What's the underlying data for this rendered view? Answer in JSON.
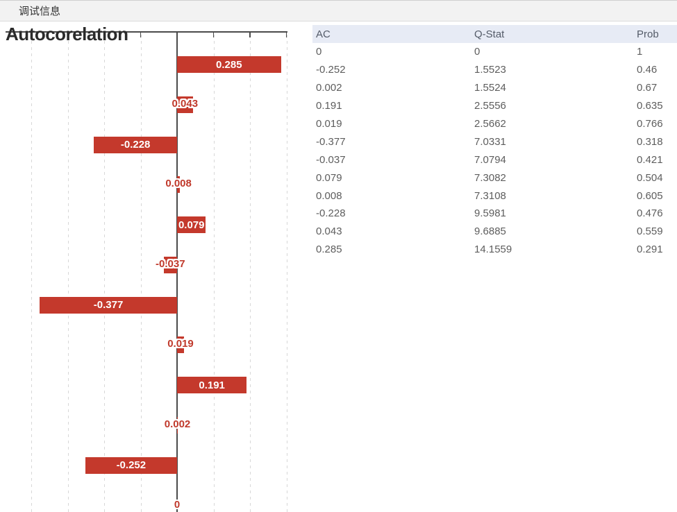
{
  "topbar": {
    "title": "调试信息"
  },
  "chart_data": {
    "type": "bar",
    "orientation": "horizontal",
    "title": "Autocorelation",
    "bar_color": "#c4392c",
    "label_color_outside": "#c0392b",
    "values": [
      0.285,
      0.043,
      -0.228,
      0.008,
      0.079,
      -0.037,
      -0.377,
      0.019,
      0.191,
      0.002,
      -0.252,
      0
    ],
    "labels": [
      "0.285",
      "0.043",
      "-0.228",
      "0.008",
      "0.079",
      "-0.037",
      "-0.377",
      "0.019",
      "0.191",
      "0.002",
      "-0.252",
      "0"
    ],
    "x_gridlines": [
      -0.4,
      -0.3,
      -0.2,
      -0.1,
      0,
      0.1,
      0.2,
      0.3
    ],
    "xlim": [
      -0.47,
      0.31
    ],
    "grid": true,
    "legend": false
  },
  "table": {
    "headers": [
      "AC",
      "Q-Stat",
      "Prob"
    ],
    "header_bg": "#e7ebf5",
    "rows": [
      [
        "0",
        "0",
        "1"
      ],
      [
        "-0.252",
        "1.5523",
        "0.46"
      ],
      [
        "0.002",
        "1.5524",
        "0.67"
      ],
      [
        "0.191",
        "2.5556",
        "0.635"
      ],
      [
        "0.019",
        "2.5662",
        "0.766"
      ],
      [
        "-0.377",
        "7.0331",
        "0.318"
      ],
      [
        "-0.037",
        "7.0794",
        "0.421"
      ],
      [
        "0.079",
        "7.3082",
        "0.504"
      ],
      [
        "0.008",
        "7.3108",
        "0.605"
      ],
      [
        "-0.228",
        "9.5981",
        "0.476"
      ],
      [
        "0.043",
        "9.6885",
        "0.559"
      ],
      [
        "0.285",
        "14.1559",
        "0.291"
      ]
    ]
  }
}
